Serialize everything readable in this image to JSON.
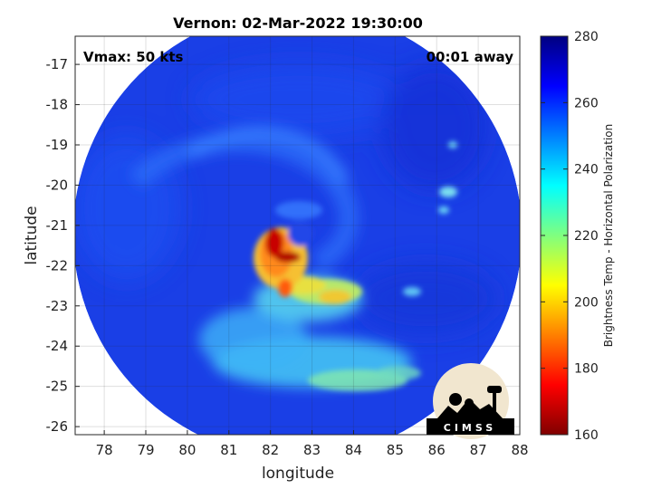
{
  "chart_data": {
    "type": "heatmap",
    "title": "Vernon: 02-Mar-2022 19:30:00",
    "xlabel": "longitude",
    "ylabel": "latitude",
    "xlim": [
      77.3,
      88
    ],
    "ylim": [
      -26.2,
      -16.3
    ],
    "x_ticks": [
      "78",
      "79",
      "80",
      "81",
      "82",
      "83",
      "84",
      "85",
      "86",
      "87",
      "88"
    ],
    "y_ticks": [
      "-17",
      "-18",
      "-19",
      "-20",
      "-21",
      "-22",
      "-23",
      "-24",
      "-25",
      "-26"
    ],
    "grid": true,
    "annotations": {
      "vmax": "Vmax: 50 kts",
      "time_offset": "00:01 away"
    },
    "swath": {
      "center_lon": 82.65,
      "center_lat": -21.2,
      "radius_deg": 5.4
    },
    "colorbar": {
      "label": "Brightness Temp - Horizontal Polarization",
      "range": [
        160,
        280
      ],
      "ticks": [
        "280",
        "260",
        "240",
        "220",
        "200",
        "180",
        "160"
      ],
      "colormap": "jet"
    },
    "eye": {
      "lon": 82.6,
      "lat": -20.9
    },
    "cold_features": [
      {
        "name": "eyewall-core",
        "lon": 82.1,
        "lat": -21.35,
        "value": 170
      },
      {
        "name": "eyewall-southwest",
        "lon": 81.9,
        "lat": -21.9,
        "value": 195
      },
      {
        "name": "inner-band-south",
        "lon": 82.5,
        "lat": -22.3,
        "value": 200
      },
      {
        "name": "band-southeast",
        "lon": 83.6,
        "lat": -22.6,
        "value": 215
      },
      {
        "name": "outer-band",
        "lon": 83.8,
        "lat": -24.6,
        "value": 232
      },
      {
        "name": "outer-band-west",
        "lon": 81.6,
        "lat": -23.8,
        "value": 238
      },
      {
        "name": "east-cells",
        "lon": 86.3,
        "lat": -20.2,
        "value": 238
      }
    ],
    "logo_text": "CIMSS"
  }
}
